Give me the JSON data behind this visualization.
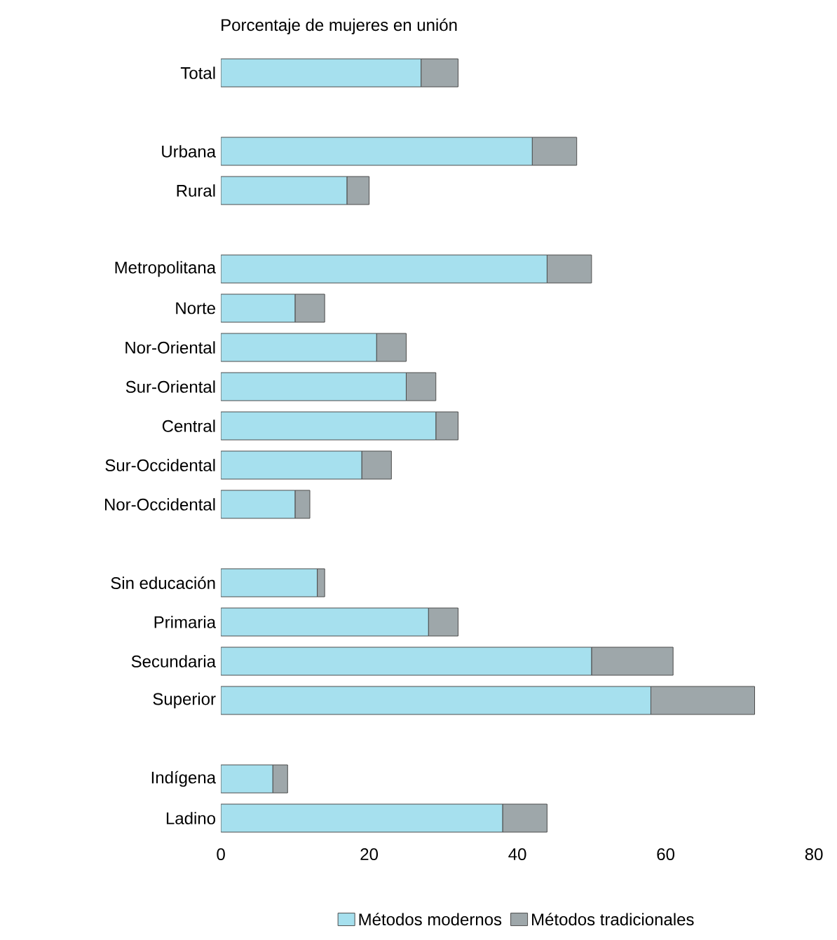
{
  "chart_data": {
    "type": "bar",
    "orientation": "horizontal",
    "stacked": true,
    "title": "Porcentaje de mujeres en unión",
    "categories": [
      "Total",
      null,
      "Urbana",
      "Rural",
      null,
      "Metropolitana",
      "Norte",
      "Nor-Oriental",
      "Sur-Oriental",
      "Central",
      "Sur-Occidental",
      "Nor-Occidental",
      null,
      "Sin educación",
      "Primaria",
      "Secundaria",
      "Superior",
      null,
      "Indígena",
      "Ladino"
    ],
    "series": [
      {
        "name": "Métodos modernos",
        "color": "#a6e0ee",
        "values": [
          27,
          null,
          42,
          17,
          null,
          44,
          10,
          21,
          25,
          29,
          19,
          10,
          null,
          13,
          28,
          50,
          58,
          null,
          7,
          38
        ]
      },
      {
        "name": "Métodos tradicionales",
        "color": "#9ea7aa",
        "values": [
          5,
          null,
          6,
          3,
          null,
          6,
          4,
          4,
          4,
          3,
          4,
          2,
          null,
          1,
          4,
          11,
          14,
          null,
          2,
          6
        ]
      }
    ],
    "xlim": [
      0,
      80
    ],
    "xticks": [
      0,
      20,
      40,
      60,
      80
    ],
    "grid": false,
    "legend": "bottom"
  }
}
